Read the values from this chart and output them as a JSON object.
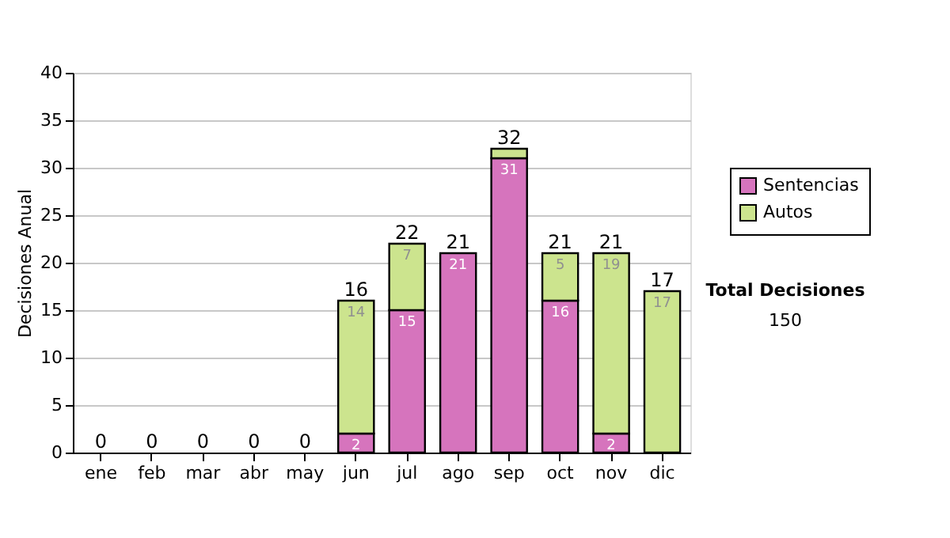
{
  "chart_data": {
    "type": "bar",
    "stacked": true,
    "ylabel": "Decisiones Anual",
    "categories": [
      "ene",
      "feb",
      "mar",
      "abr",
      "may",
      "jun",
      "jul",
      "ago",
      "sep",
      "oct",
      "nov",
      "dic"
    ],
    "series": [
      {
        "name": "Sentencias",
        "color": "#d674bd",
        "values": [
          0,
          0,
          0,
          0,
          0,
          2,
          15,
          21,
          31,
          16,
          2,
          0
        ],
        "value_labels": [
          null,
          null,
          null,
          null,
          null,
          "2",
          "15",
          "21",
          "31",
          "16",
          "2",
          null
        ]
      },
      {
        "name": "Autos",
        "color": "#cce48e",
        "values": [
          0,
          0,
          0,
          0,
          0,
          14,
          7,
          0,
          1,
          5,
          19,
          17
        ],
        "value_labels": [
          null,
          null,
          null,
          null,
          null,
          "14",
          "7",
          null,
          null,
          "5",
          "19",
          "17"
        ]
      }
    ],
    "totals": [
      "0",
      "0",
      "0",
      "0",
      "0",
      "16",
      "22",
      "21",
      "32",
      "21",
      "21",
      "17"
    ],
    "ylim": [
      0,
      40
    ],
    "yticks": [
      0,
      5,
      10,
      15,
      20,
      25,
      30,
      35,
      40
    ],
    "grid": "y",
    "legend": "right",
    "annotations": [
      "Total Decisiones",
      "150"
    ]
  }
}
